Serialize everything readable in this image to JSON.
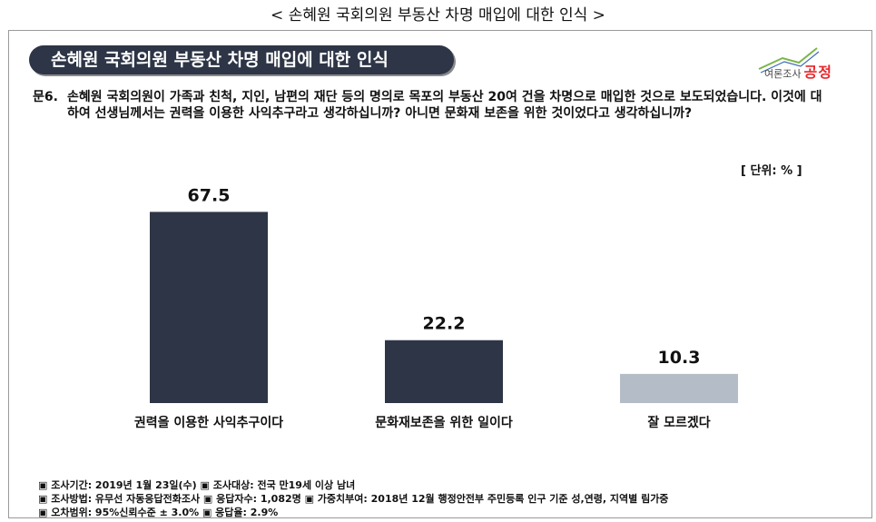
{
  "outer_title": "< 손혜원 국회의원 부동산 차명 매입에 대한 인식 >",
  "panel_title": "손혜원 국회의원 부동산 차명 매입에 대한 인식",
  "logo": {
    "sub": "여론조사",
    "brand": "공정"
  },
  "question": {
    "label": "문6.",
    "text": "손혜원 국회의원이 가족과 친척, 지인, 남편의 재단 등의 명의로 목포의 부동산 20여 건을 차명으로 매입한 것으로 보도되었습니다. 이것에 대하여 선생님께서는 권력을 이용한 사익추구라고 생각하십니까? 아니면 문화재 보존을 위한 것이었다고 생각하십니까?"
  },
  "unit_label": "[ 단위: % ]",
  "chart_data": {
    "type": "bar",
    "categories": [
      "권력을 이용한 사익추구이다",
      "문화재보존을 위한 일이다",
      "잘 모르겠다"
    ],
    "values": [
      67.5,
      22.2,
      10.3
    ],
    "value_labels": [
      "67.5",
      "22.2",
      "10.3"
    ],
    "colors": [
      "#2d3546",
      "#2d3546",
      "#b4bdc7"
    ],
    "ylim": [
      0,
      75
    ],
    "grid": false,
    "legend": "none"
  },
  "footnotes": [
    "▣ 조사기간: 2019년 1월 23일(수) ▣ 조사대상: 전국 만19세 이상 남녀",
    "▣ 조사방법: 유무선 자동응답전화조사 ▣ 응답자수: 1,082명 ▣ 가중치부여: 2018년 12월 행정안전부 주민등록 인구 기준 성,연령, 지역별 림가중",
    "▣ 오차범위: 95%신뢰수준 ± 3.0% ▣ 응답율: 2.9%"
  ]
}
